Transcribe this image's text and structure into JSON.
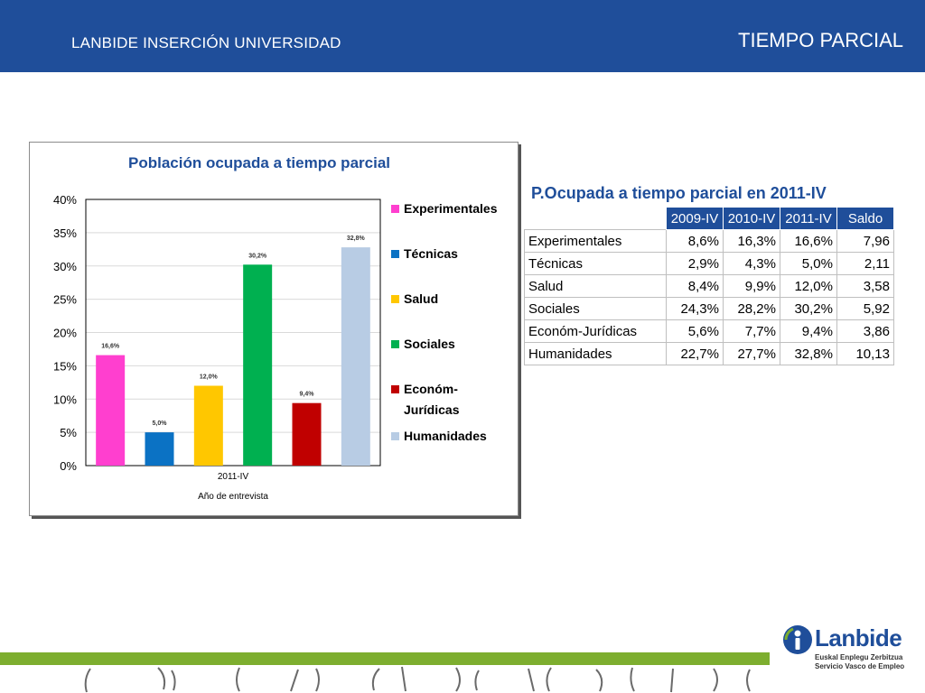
{
  "header": {
    "left_title": "LANBIDE INSERCIÓN UNIVERSIDAD",
    "right_title": "TIEMPO PARCIAL"
  },
  "chart_data": {
    "type": "bar",
    "title": "Población ocupada a tiempo parcial",
    "xlabel": "Año de entrevista",
    "ylabel": "",
    "categories": [
      "2011-IV"
    ],
    "series": [
      {
        "name": "Experimentales",
        "values": [
          16.6
        ],
        "label": "16,6%",
        "color": "#ff3fcf"
      },
      {
        "name": "Técnicas",
        "values": [
          5.0
        ],
        "label": "5,0%",
        "color": "#0b72c4"
      },
      {
        "name": "Salud",
        "values": [
          12.0
        ],
        "label": "12,0%",
        "color": "#ffc700"
      },
      {
        "name": "Sociales",
        "values": [
          30.2
        ],
        "label": "30,2%",
        "color": "#00b050"
      },
      {
        "name": "Económ- Jurídicas",
        "values": [
          9.4
        ],
        "label": "9,4%",
        "color": "#c00000"
      },
      {
        "name": "Humanidades",
        "values": [
          32.8
        ],
        "label": "32,8%",
        "color": "#b8cce4"
      }
    ],
    "ylim": [
      0,
      40
    ],
    "yticks": [
      "0%",
      "5%",
      "10%",
      "15%",
      "20%",
      "25%",
      "30%",
      "35%",
      "40%"
    ],
    "grid": true,
    "legend_position": "right"
  },
  "table": {
    "title": "P.Ocupada a tiempo parcial en 2011-IV",
    "headers": [
      "2009-IV",
      "2010-IV",
      "2011-IV",
      "Saldo"
    ],
    "rows": [
      {
        "name": "Experimentales",
        "v2009": "8,6%",
        "v2010": "16,3%",
        "v2011": "16,6%",
        "saldo": "7,96"
      },
      {
        "name": "Técnicas",
        "v2009": "2,9%",
        "v2010": "4,3%",
        "v2011": "5,0%",
        "saldo": "2,11"
      },
      {
        "name": "Salud",
        "v2009": "8,4%",
        "v2010": "9,9%",
        "v2011": "12,0%",
        "saldo": "3,58"
      },
      {
        "name": "Sociales",
        "v2009": "24,3%",
        "v2010": "28,2%",
        "v2011": "30,2%",
        "saldo": "5,92"
      },
      {
        "name": "Económ-Jurídicas",
        "v2009": "5,6%",
        "v2010": "7,7%",
        "v2011": "9,4%",
        "saldo": "3,86"
      },
      {
        "name": "Humanidades",
        "v2009": "22,7%",
        "v2010": "27,7%",
        "v2011": "32,8%",
        "saldo": "10,13"
      }
    ]
  },
  "logo": {
    "word": "Lanbide",
    "sub1": "Euskal Enplegu Zerbitzua",
    "sub2": "Servicio Vasco de Empleo"
  },
  "colors": {
    "brand_blue": "#1f4e9a",
    "footer_green": "#7dae2f"
  }
}
